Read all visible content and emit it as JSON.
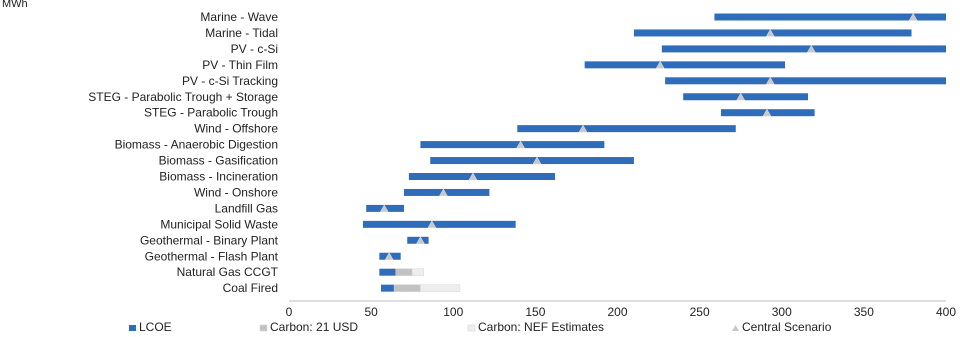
{
  "chart_data": {
    "type": "bar",
    "subtype": "floating-range",
    "unit_label": "MWh",
    "categories": [
      "Marine - Wave",
      "Marine - Tidal",
      "PV - c-Si",
      "PV - Thin Film",
      "PV - c-Si Tracking",
      "STEG - Parabolic Trough + Storage",
      "STEG - Parabolic Trough",
      "Wind - Offshore",
      "Biomass - Anaerobic Digestion",
      "Biomass - Gasification",
      "Biomass - Incineration",
      "Wind - Onshore",
      "Landfill Gas",
      "Municipal Solid Waste",
      "Geothermal - Binary Plant",
      "Geothermal - Flash Plant",
      "Natural Gas CCGT",
      "Coal Fired"
    ],
    "series": [
      {
        "name": "LCOE",
        "color": "#2f6dbb",
        "ranges": [
          [
            259,
            400
          ],
          [
            210,
            379
          ],
          [
            227,
            400
          ],
          [
            180,
            302
          ],
          [
            229,
            400
          ],
          [
            240,
            316
          ],
          [
            263,
            320
          ],
          [
            139,
            272
          ],
          [
            80,
            192
          ],
          [
            86,
            210
          ],
          [
            73,
            162
          ],
          [
            70,
            122
          ],
          [
            47,
            70
          ],
          [
            45,
            138
          ],
          [
            72,
            85
          ],
          [
            55,
            68
          ],
          [
            55,
            65
          ],
          [
            56,
            64
          ]
        ]
      },
      {
        "name": "Carbon: 21 USD",
        "color": "#c2c2c2",
        "ranges": [
          null,
          null,
          null,
          null,
          null,
          null,
          null,
          null,
          null,
          null,
          null,
          null,
          null,
          null,
          null,
          null,
          [
            65,
            75
          ],
          [
            64,
            80
          ]
        ]
      },
      {
        "name": "Carbon: NEF Estimates",
        "color": "#eeeeee",
        "ranges": [
          null,
          null,
          null,
          null,
          null,
          null,
          null,
          null,
          null,
          null,
          null,
          null,
          null,
          null,
          null,
          null,
          [
            75,
            82
          ],
          [
            80,
            104
          ]
        ]
      },
      {
        "name": "Central Scenario",
        "color": "#c8c8c8",
        "marker": "triangle",
        "values": [
          380,
          293,
          318,
          226,
          293,
          275,
          291,
          179,
          141,
          151,
          112,
          94,
          58,
          87,
          80,
          61,
          null,
          null
        ]
      }
    ],
    "xlim": [
      0,
      400
    ],
    "xticks": [
      0,
      50,
      100,
      150,
      200,
      250,
      300,
      350,
      400
    ],
    "legend_position": "bottom",
    "grid": false
  }
}
